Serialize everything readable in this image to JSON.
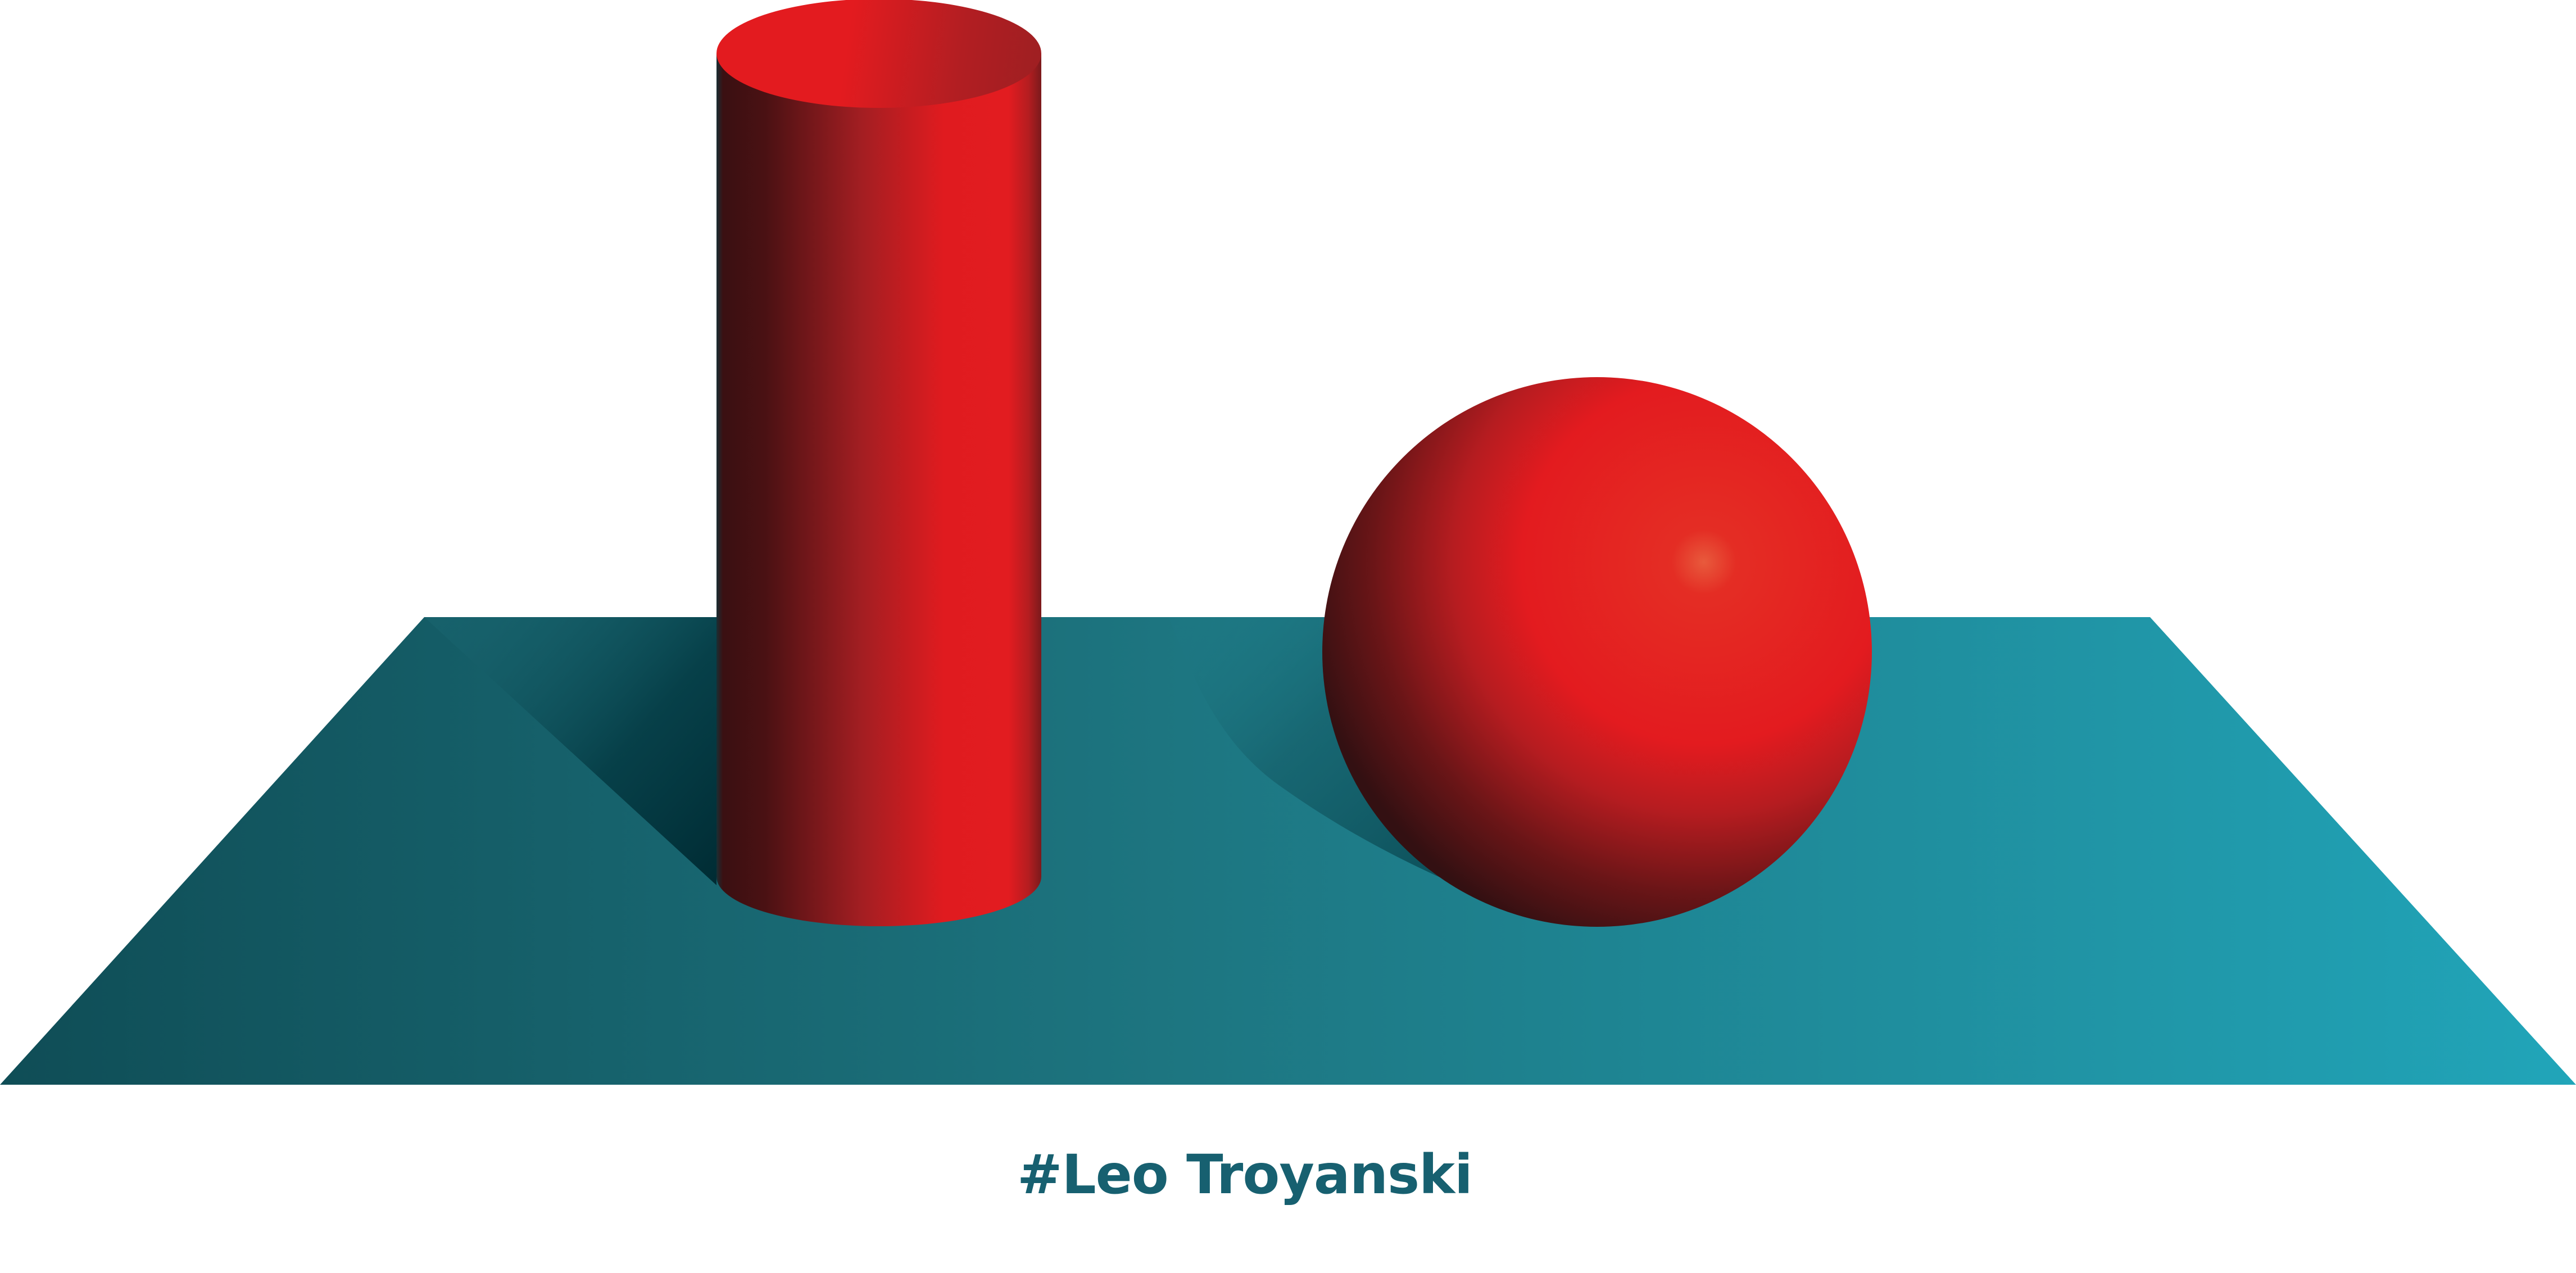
{
  "caption": {
    "text": "#Leo Troyanski"
  },
  "colors": {
    "background": "#ffffff",
    "plane_dark": "#0f4d56",
    "plane_light": "#20a2b6",
    "shadow_dark": "#002f38",
    "object_red": "#e31b1f",
    "object_dark": "#3d0f10",
    "caption_text": "#176070"
  },
  "objects": [
    "plane",
    "cylinder",
    "sphere"
  ]
}
